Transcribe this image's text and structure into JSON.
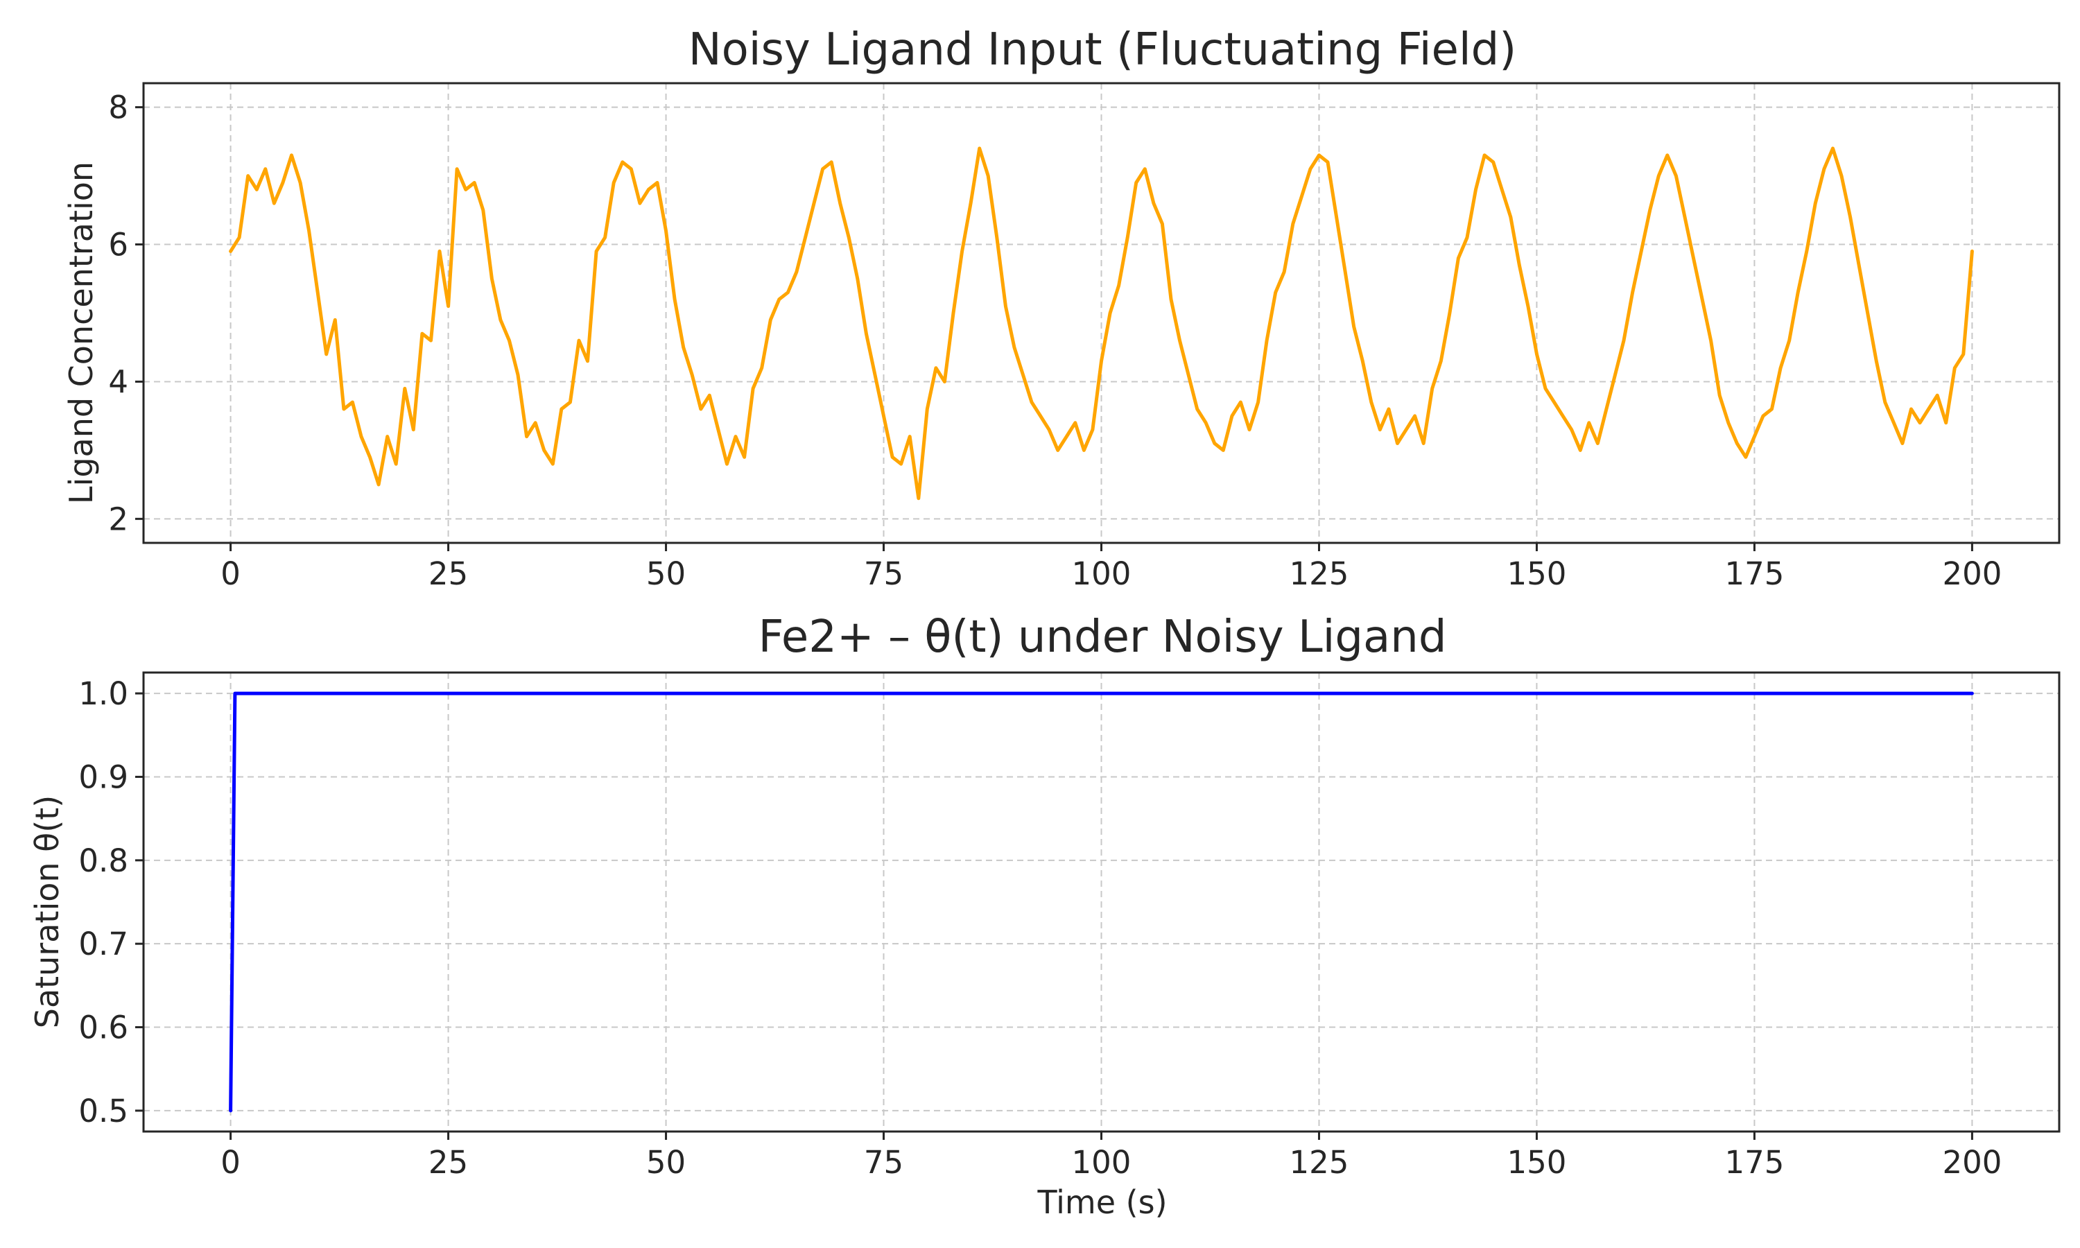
{
  "chart_data": [
    {
      "type": "line",
      "title": "Noisy Ligand Input (Fluctuating Field)",
      "xlabel": "",
      "ylabel": "Ligand Concentration",
      "xlim": [
        -10,
        210
      ],
      "ylim": [
        1.65,
        8.35
      ],
      "xticks": [
        0,
        25,
        50,
        75,
        100,
        125,
        150,
        175,
        200
      ],
      "xtick_labels": [
        "0",
        "25",
        "50",
        "75",
        "100",
        "125",
        "150",
        "175",
        "200"
      ],
      "yticks": [
        2,
        4,
        6,
        8
      ],
      "ytick_labels": [
        "2",
        "4",
        "6",
        "8"
      ],
      "grid": true,
      "color": "#ffa500",
      "series": [
        {
          "x": [
            0,
            1,
            2,
            3,
            4,
            5,
            6,
            7,
            8,
            9,
            10,
            11,
            12,
            13,
            14,
            15,
            16,
            17,
            18,
            19,
            20,
            21,
            22,
            23,
            24,
            25,
            26,
            27,
            28,
            29,
            30,
            31,
            32,
            33,
            34,
            35,
            36,
            37,
            38,
            39,
            40,
            41,
            42,
            43,
            44,
            45,
            46,
            47,
            48,
            49,
            50,
            51,
            52,
            53,
            54,
            55,
            56,
            57,
            58,
            59,
            60,
            61,
            62,
            63,
            64,
            65,
            66,
            67,
            68,
            69,
            70,
            71,
            72,
            73,
            74,
            75,
            76,
            77,
            78,
            79,
            80,
            81,
            82,
            83,
            84,
            85,
            86,
            87,
            88,
            89,
            90,
            91,
            92,
            93,
            94,
            95,
            96,
            97,
            98,
            99,
            100,
            101,
            102,
            103,
            104,
            105,
            106,
            107,
            108,
            109,
            110,
            111,
            112,
            113,
            114,
            115,
            116,
            117,
            118,
            119,
            120,
            121,
            122,
            123,
            124,
            125,
            126,
            127,
            128,
            129,
            130,
            131,
            132,
            133,
            134,
            135,
            136,
            137,
            138,
            139,
            140,
            141,
            142,
            143,
            144,
            145,
            146,
            147,
            148,
            149,
            150,
            151,
            152,
            153,
            154,
            155,
            156,
            157,
            158,
            159,
            160,
            161,
            162,
            163,
            164,
            165,
            166,
            167,
            168,
            169,
            170,
            171,
            172,
            173,
            174,
            175,
            176,
            177,
            178,
            179,
            180,
            181,
            182,
            183,
            184,
            185,
            186,
            187,
            188,
            189,
            190,
            191,
            192,
            193,
            194,
            195,
            196,
            197,
            198,
            199,
            200
          ],
          "y": [
            5.9,
            6.1,
            7.0,
            6.8,
            7.1,
            6.6,
            6.9,
            7.3,
            6.9,
            6.2,
            5.3,
            4.4,
            4.9,
            3.6,
            3.7,
            3.2,
            2.9,
            2.5,
            3.2,
            2.8,
            3.9,
            3.3,
            4.7,
            4.6,
            5.9,
            5.1,
            7.1,
            6.8,
            6.9,
            6.5,
            5.5,
            4.9,
            4.6,
            4.1,
            3.2,
            3.4,
            3.0,
            2.8,
            3.6,
            3.7,
            4.6,
            4.3,
            5.9,
            6.1,
            6.9,
            7.2,
            7.1,
            6.6,
            6.8,
            6.9,
            6.2,
            5.2,
            4.5,
            4.1,
            3.6,
            3.8,
            3.3,
            2.8,
            3.2,
            2.9,
            3.9,
            4.2,
            4.9,
            5.2,
            5.3,
            5.6,
            6.1,
            6.6,
            7.1,
            7.2,
            6.6,
            6.1,
            5.5,
            4.7,
            4.1,
            3.5,
            2.9,
            2.8,
            3.2,
            2.3,
            3.6,
            4.2,
            4.0,
            5.0,
            5.9,
            6.6,
            7.4,
            7.0,
            6.1,
            5.1,
            4.5,
            4.1,
            3.7,
            3.5,
            3.3,
            3.0,
            3.2,
            3.4,
            3.0,
            3.3,
            4.3,
            5.0,
            5.4,
            6.1,
            6.9,
            7.1,
            6.6,
            6.3,
            5.2,
            4.6,
            4.1,
            3.6,
            3.4,
            3.1,
            3.0,
            3.5,
            3.7,
            3.3,
            3.7,
            4.6,
            5.3,
            5.6,
            6.3,
            6.7,
            7.1,
            7.3,
            7.2,
            6.4,
            5.6,
            4.8,
            4.3,
            3.7,
            3.3,
            3.6,
            3.1,
            3.3,
            3.5,
            3.1,
            3.9,
            4.3,
            5.0,
            5.8,
            6.1,
            6.8,
            7.3,
            7.2,
            6.8,
            6.4,
            5.7,
            5.1,
            4.4,
            3.9,
            3.7,
            3.5,
            3.3,
            3.0,
            3.4,
            3.1,
            3.6,
            4.1,
            4.6,
            5.3,
            5.9,
            6.5,
            7.0,
            7.3,
            7.0,
            6.4,
            5.8,
            5.2,
            4.6,
            3.8,
            3.4,
            3.1,
            2.9,
            3.2,
            3.5,
            3.6,
            4.2,
            4.6,
            5.3,
            5.9,
            6.6,
            7.1,
            7.4,
            7.0,
            6.4,
            5.7,
            5.0,
            4.3,
            3.7,
            3.4,
            3.1,
            3.6,
            3.4,
            3.6,
            3.8,
            3.4,
            4.2,
            4.4,
            5.9
          ]
        }
      ]
    },
    {
      "type": "line",
      "title": "Fe2+ – θ(t) under Noisy Ligand",
      "xlabel": "Time (s)",
      "ylabel": "Saturation θ(t)",
      "xlim": [
        -10,
        210
      ],
      "ylim": [
        0.475,
        1.025
      ],
      "xticks": [
        0,
        25,
        50,
        75,
        100,
        125,
        150,
        175,
        200
      ],
      "xtick_labels": [
        "0",
        "25",
        "50",
        "75",
        "100",
        "125",
        "150",
        "175",
        "200"
      ],
      "yticks": [
        0.5,
        0.6,
        0.7,
        0.8,
        0.9,
        1.0
      ],
      "ytick_labels": [
        "0.5",
        "0.6",
        "0.7",
        "0.8",
        "0.9",
        "1.0"
      ],
      "grid": true,
      "color": "#0000ff",
      "series": [
        {
          "x": [
            0,
            0.5,
            10,
            25,
            50,
            75,
            100,
            125,
            150,
            175,
            200
          ],
          "y": [
            0.5,
            1.0,
            1.0,
            1.0,
            1.0,
            1.0,
            1.0,
            1.0,
            1.0,
            1.0,
            1.0
          ]
        }
      ]
    }
  ]
}
